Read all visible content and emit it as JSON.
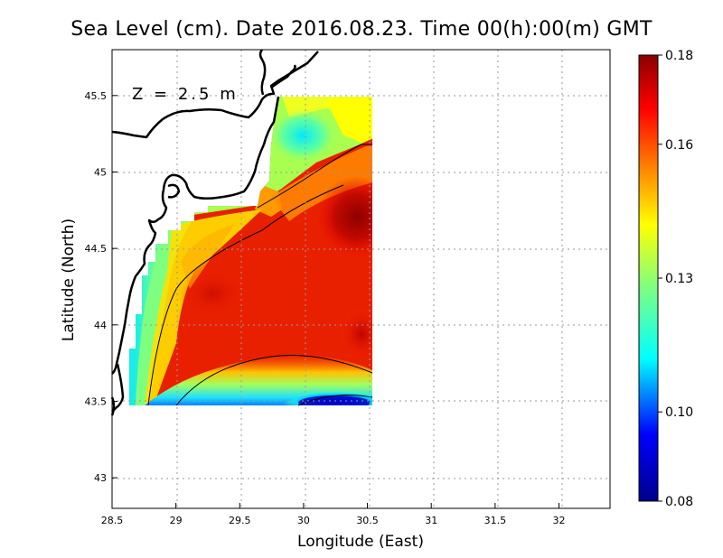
{
  "title": "Sea Level (cm). Date 2016.08.23. Time 00(h):00(m) GMT",
  "depth_label": "Z = 2.5 m",
  "chart_data": {
    "type": "heatmap",
    "title": "Sea Level (cm). Date 2016.08.23. Time 00(h):00(m) GMT",
    "xlabel": "Longitude (East)",
    "ylabel": "Latitude (North)",
    "xlim": [
      28.5,
      32.4
    ],
    "ylim": [
      42.8,
      45.8
    ],
    "x_ticks": [
      "28.5",
      "29",
      "29.5",
      "30",
      "30.5",
      "31",
      "31.5",
      "32"
    ],
    "y_ticks": [
      "43",
      "43.5",
      "44",
      "44.5",
      "45",
      "45.5"
    ],
    "grid": true,
    "field_extent": {
      "lon": [
        28.63,
        30.53
      ],
      "lat": [
        43.49,
        45.5
      ]
    },
    "colorbar": {
      "ticks": [
        "0.08",
        "0.10",
        "0.13",
        "0.16",
        "0.18"
      ],
      "range": [
        0.08,
        0.18
      ],
      "colors": [
        "#00008b",
        "#0000ff",
        "#00ffff",
        "#7fff7f",
        "#ffff00",
        "#ff8000",
        "#ff0000",
        "#8b0000"
      ]
    }
  }
}
